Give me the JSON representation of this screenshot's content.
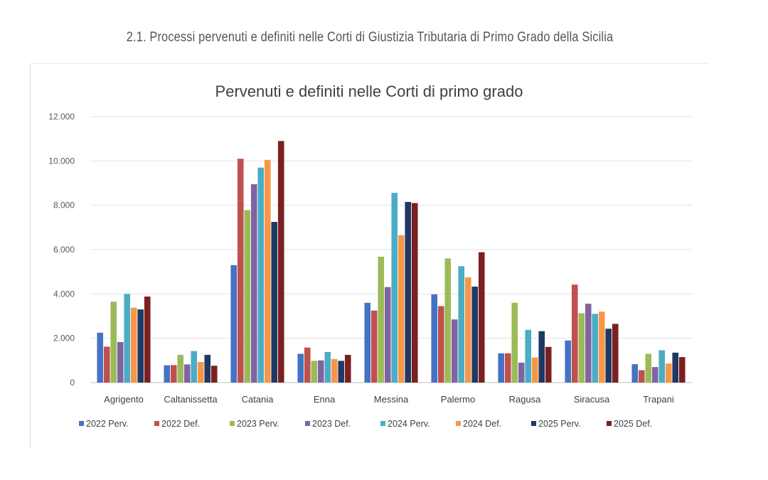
{
  "page_heading": "2.1. Processi pervenuti e definiti nelle Corti di Giustizia Tributaria di Primo Grado della Sicilia",
  "chart_data": {
    "type": "bar",
    "title": "Pervenuti e definiti nelle Corti di primo grado",
    "xlabel": "",
    "ylabel": "",
    "ylim": [
      0,
      12000
    ],
    "yticks": [
      0,
      2000,
      4000,
      6000,
      8000,
      10000,
      12000
    ],
    "ytick_labels": [
      "0",
      "2.000",
      "4.000",
      "6.000",
      "8.000",
      "10.000",
      "12.000"
    ],
    "grid": true,
    "legend_position": "bottom",
    "categories": [
      "Agrigento",
      "Caltanissetta",
      "Catania",
      "Enna",
      "Messina",
      "Palermo",
      "Ragusa",
      "Siracusa",
      "Trapani"
    ],
    "series": [
      {
        "name": "2022 Perv.",
        "color": "#4472c4",
        "values": [
          2250,
          780,
          5300,
          1300,
          3600,
          3980,
          1320,
          1900,
          830
        ]
      },
      {
        "name": "2022 Def.",
        "color": "#c0504d",
        "values": [
          1620,
          790,
          10100,
          1580,
          3250,
          3450,
          1320,
          4420,
          560
        ]
      },
      {
        "name": "2023 Perv.",
        "color": "#9bbb59",
        "values": [
          3650,
          1250,
          7780,
          980,
          5680,
          5600,
          3600,
          3130,
          1300
        ]
      },
      {
        "name": "2023 Def.",
        "color": "#8064a2",
        "values": [
          1830,
          820,
          8950,
          1000,
          4310,
          2850,
          900,
          3560,
          700
        ]
      },
      {
        "name": "2024 Perv.",
        "color": "#4bacc6",
        "values": [
          4000,
          1420,
          9700,
          1380,
          8560,
          5250,
          2380,
          3100,
          1460
        ]
      },
      {
        "name": "2024 Def.",
        "color": "#f79646",
        "values": [
          3380,
          930,
          10050,
          1060,
          6650,
          4750,
          1130,
          3200,
          860
        ]
      },
      {
        "name": "2025 Perv.",
        "color": "#1f3864",
        "values": [
          3300,
          1250,
          7250,
          980,
          8150,
          4330,
          2320,
          2430,
          1350
        ]
      },
      {
        "name": "2025 Def.",
        "color": "#7b2020",
        "values": [
          3880,
          760,
          10900,
          1250,
          8100,
          5880,
          1610,
          2650,
          1150
        ]
      }
    ]
  }
}
